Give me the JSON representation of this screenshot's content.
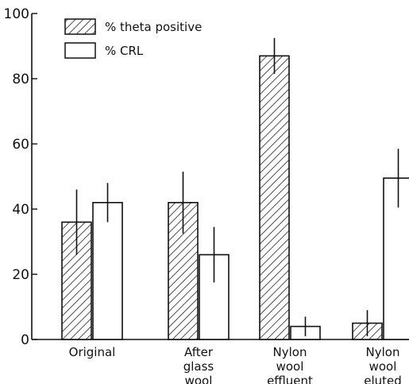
{
  "chart_data": {
    "type": "bar",
    "title": "",
    "xlabel": "",
    "ylabel": "",
    "ylim": [
      0,
      100
    ],
    "yticks": [
      "0",
      "20",
      "40",
      "60",
      "80",
      "100"
    ],
    "categories": [
      [
        "Original"
      ],
      [
        "After",
        "glass",
        "wool"
      ],
      [
        "Nylon",
        "wool",
        "effluent"
      ],
      [
        "Nylon",
        "wool",
        "eluted"
      ]
    ],
    "series": [
      {
        "name": "% theta positive",
        "fill": "hatched",
        "values": [
          36,
          42,
          87,
          5
        ],
        "error": [
          10,
          9.5,
          5.5,
          4
        ]
      },
      {
        "name": "% CRL",
        "fill": "white",
        "values": [
          42,
          26,
          4,
          49.5
        ],
        "error": [
          6,
          8.5,
          3,
          9
        ]
      }
    ],
    "legend": "top-left",
    "grid": false,
    "colors": {
      "axis": "#111111",
      "bar_fill": "#ffffff",
      "hatch": "#222222"
    }
  }
}
